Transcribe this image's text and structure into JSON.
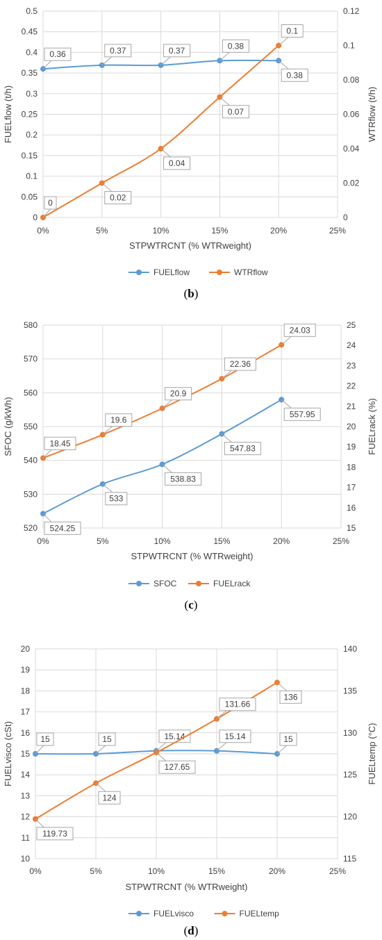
{
  "colors": {
    "series1": "#5b9bd5",
    "series2": "#ed7d31",
    "grid": "#d9d9d9",
    "text": "#404040"
  },
  "panels": [
    {
      "caption_letter": "b",
      "chart_data": {
        "type": "line",
        "x_label": "STPWTRCNT (% WTRweight)",
        "x_ticks": [
          "0%",
          "5%",
          "10%",
          "15%",
          "20%",
          "25%"
        ],
        "x_values": [
          0,
          5,
          10,
          15,
          20
        ],
        "xlim": [
          0,
          25
        ],
        "y_left": {
          "label": "FUELflow  (t/h)",
          "lim": [
            0,
            0.5
          ],
          "step": 0.05,
          "ticks": [
            "0",
            "0.05",
            "0.1",
            "0.15",
            "0.2",
            "0.25",
            "0.3",
            "0.35",
            "0.4",
            "0.45",
            "0.5"
          ]
        },
        "y_right": {
          "label": "WTRflow  (t/h)",
          "lim": [
            0,
            0.12
          ],
          "step": 0.02,
          "ticks": [
            "0",
            "0.02",
            "0.04",
            "0.06",
            "0.08",
            "0.1",
            "0.12"
          ]
        },
        "series": [
          {
            "name": "FUELflow",
            "axis": "left",
            "values": [
              0.36,
              0.369,
              0.369,
              0.38,
              0.38
            ],
            "labels": [
              "0.36",
              "0.37",
              "0.37",
              "0.38",
              "0.38"
            ],
            "label_side": [
              "above",
              "above",
              "above",
              "above",
              "below"
            ]
          },
          {
            "name": "WTRflow",
            "axis": "right",
            "values": [
              0,
              0.02,
              0.04,
              0.07,
              0.1
            ],
            "labels": [
              "0",
              "0.02",
              "0.04",
              "0.07",
              "0.1"
            ],
            "label_side": [
              "above",
              "below",
              "below",
              "below",
              "above"
            ]
          }
        ],
        "legend": "bottom",
        "grid": true
      }
    },
    {
      "caption_letter": "c",
      "chart_data": {
        "type": "line",
        "x_label": "STPWTRCNT (% WTRweight)",
        "x_ticks": [
          "0%",
          "5%",
          "10%",
          "15%",
          "20%",
          "25%"
        ],
        "x_values": [
          0,
          5,
          10,
          15,
          20
        ],
        "xlim": [
          0,
          25
        ],
        "y_left": {
          "label": "SFOC (g/kWh)",
          "lim": [
            520,
            580
          ],
          "step": 10,
          "ticks": [
            "520",
            "530",
            "540",
            "550",
            "560",
            "570",
            "580"
          ]
        },
        "y_right": {
          "label": "FUELrack  (%)",
          "lim": [
            15,
            25
          ],
          "step": 1,
          "ticks": [
            "15",
            "16",
            "17",
            "18",
            "19",
            "20",
            "21",
            "22",
            "23",
            "24",
            "25"
          ]
        },
        "series": [
          {
            "name": "SFOC",
            "axis": "left",
            "values": [
              524.25,
              533,
              538.83,
              547.83,
              557.95
            ],
            "labels": [
              "524.25",
              "533",
              "538.83",
              "547.83",
              "557.95"
            ],
            "label_side": [
              "below",
              "below",
              "below",
              "below",
              "below"
            ]
          },
          {
            "name": "FUELrack",
            "axis": "right",
            "values": [
              18.45,
              19.6,
              20.9,
              22.36,
              24.03
            ],
            "labels": [
              "18.45",
              "19.6",
              "20.9",
              "22.36",
              "24.03"
            ],
            "label_side": [
              "above",
              "above",
              "above",
              "above",
              "above"
            ]
          }
        ],
        "legend": "bottom",
        "grid": true
      }
    },
    {
      "caption_letter": "d",
      "chart_data": {
        "type": "line",
        "x_label": "STPWTRCNT (% WTRweight)",
        "x_ticks": [
          "0%",
          "5%",
          "10%",
          "15%",
          "20%",
          "25%"
        ],
        "x_values": [
          0,
          5,
          10,
          15,
          20
        ],
        "xlim": [
          0,
          25
        ],
        "y_left": {
          "label": "FUELvisco (cSt)",
          "lim": [
            10,
            20
          ],
          "step": 1,
          "ticks": [
            "10",
            "11",
            "12",
            "13",
            "14",
            "15",
            "16",
            "17",
            "18",
            "19",
            "20"
          ]
        },
        "y_right": {
          "label": "FUELtemp (°C)",
          "lim": [
            115,
            140
          ],
          "step": 5,
          "ticks": [
            "115",
            "120",
            "125",
            "130",
            "135",
            "140"
          ]
        },
        "series": [
          {
            "name": "FUELvisco",
            "axis": "left",
            "values": [
              15,
              15,
              15.14,
              15.14,
              15
            ],
            "labels": [
              "15",
              "15",
              "15.14",
              "15.14",
              "15"
            ],
            "label_side": [
              "above",
              "above",
              "above",
              "above",
              "above"
            ]
          },
          {
            "name": "FUELtemp",
            "axis": "right",
            "values": [
              119.73,
              124,
              127.65,
              131.66,
              136
            ],
            "labels": [
              "119.73",
              "124",
              "127.65",
              "131.66",
              "136"
            ],
            "label_side": [
              "below",
              "below",
              "below",
              "above",
              "below"
            ]
          }
        ],
        "legend": "bottom",
        "grid": true
      }
    }
  ]
}
